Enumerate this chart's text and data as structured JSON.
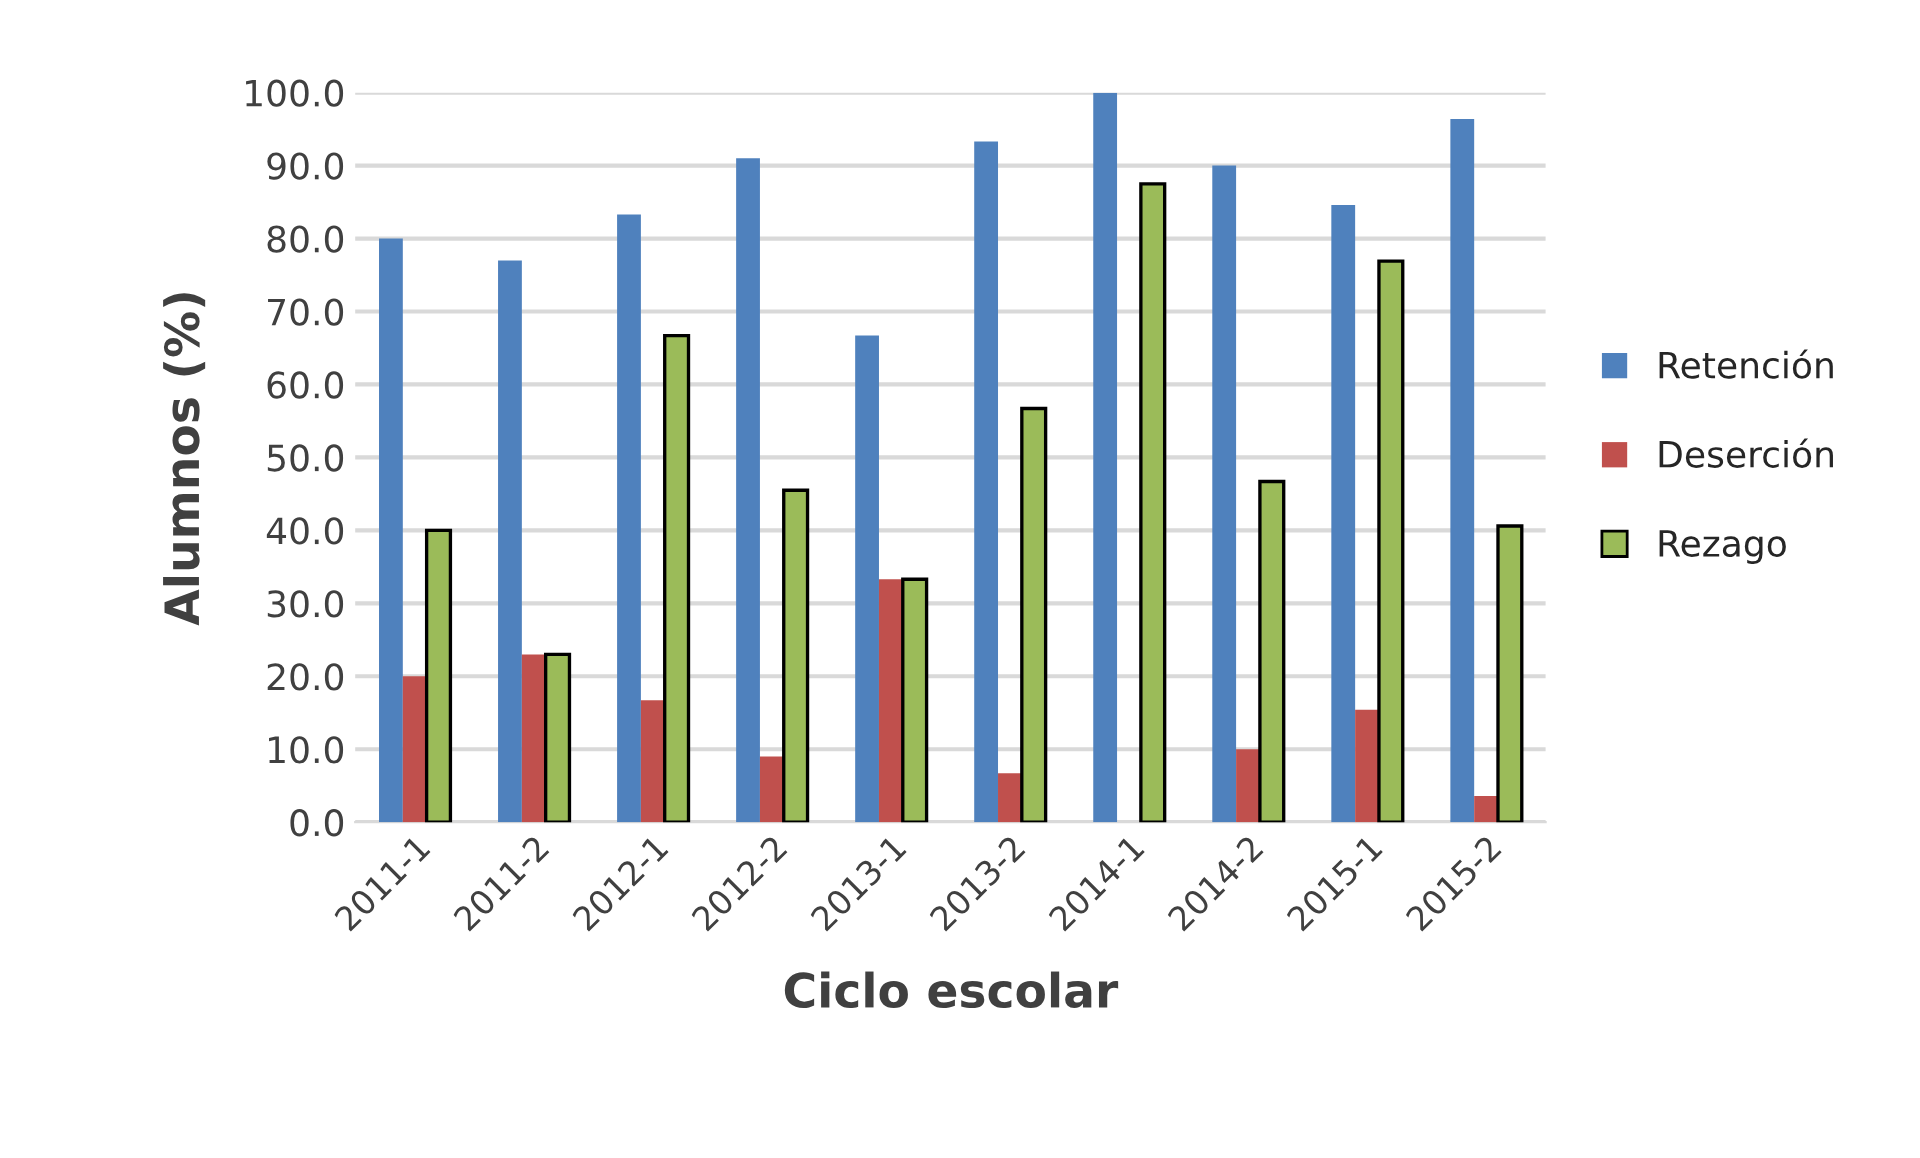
{
  "chart_data": {
    "type": "bar",
    "xlabel": "Ciclo escolar",
    "ylabel": "Alumnos (%)",
    "categories": [
      "2011-1",
      "2011-2",
      "2012-1",
      "2012-2",
      "2013-1",
      "2013-2",
      "2014-1",
      "2014-2",
      "2015-1",
      "2015-2"
    ],
    "series": [
      {
        "name": "Retención",
        "color": "#4f81bd",
        "values": [
          80,
          77,
          83.3,
          91,
          66.7,
          93.3,
          100,
          90,
          84.6,
          96.4
        ]
      },
      {
        "name": "Deserción",
        "color": "#c0504d",
        "values": [
          20,
          23,
          16.7,
          9,
          33.3,
          6.7,
          0,
          10,
          15.4,
          3.6
        ]
      },
      {
        "name": "Rezago",
        "color": "#9bbb59",
        "values": [
          40,
          23,
          66.7,
          45.5,
          33.3,
          56.7,
          87.5,
          46.7,
          76.9,
          40.6
        ]
      }
    ],
    "ylim": [
      0,
      100
    ],
    "yticks": [
      {
        "value": 0,
        "label": "0.0"
      },
      {
        "value": 10,
        "label": "10.0"
      },
      {
        "value": 20,
        "label": "20.0"
      },
      {
        "value": 30,
        "label": "30.0"
      },
      {
        "value": 40,
        "label": "40.0"
      },
      {
        "value": 50,
        "label": "50.0"
      },
      {
        "value": 60,
        "label": "60.0"
      },
      {
        "value": 70,
        "label": "70.0"
      },
      {
        "value": 80,
        "label": "80.0"
      },
      {
        "value": 90,
        "label": "90.0"
      },
      {
        "value": 100,
        "label": "100.0"
      }
    ],
    "grid": "y",
    "legend": "right"
  }
}
